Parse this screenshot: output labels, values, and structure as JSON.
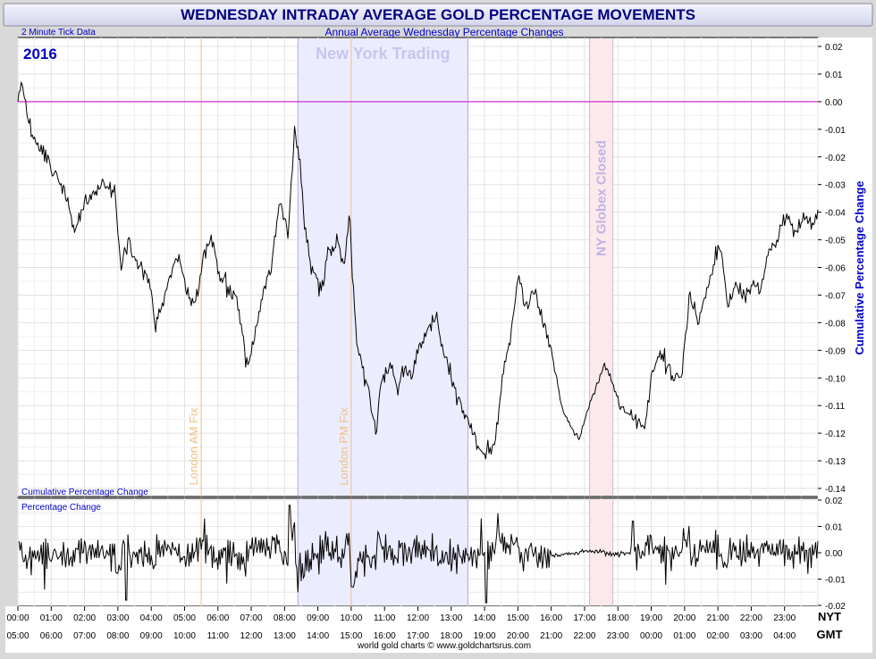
{
  "chart_data": {
    "type": "line",
    "title": "WEDNESDAY INTRADAY AVERAGE GOLD PERCENTAGE MOVEMENTS",
    "subtitle": "Annual Average Wednesday Percentage Changes",
    "note": "2 Minute Tick Data",
    "year": "2016",
    "source": "world gold charts © www.goldchartsrus.com",
    "x_units": "hours from 00:00 NYT",
    "nyt_ticks": [
      "00:00",
      "01:00",
      "02:00",
      "03:00",
      "04:00",
      "05:00",
      "06:00",
      "07:00",
      "08:00",
      "09:00",
      "10:00",
      "11:00",
      "12:00",
      "13:00",
      "14:00",
      "15:00",
      "16:00",
      "17:00",
      "18:00",
      "19:00",
      "20:00",
      "21:00",
      "22:00",
      "23:00"
    ],
    "gmt_ticks": [
      "05:00",
      "06:00",
      "07:00",
      "08:00",
      "09:00",
      "10:00",
      "11:00",
      "12:00",
      "13:00",
      "14:00",
      "15:00",
      "16:00",
      "17:00",
      "18:00",
      "19:00",
      "20:00",
      "21:00",
      "22:00",
      "23:00",
      "00:00",
      "01:00",
      "02:00",
      "03:00",
      "04:00"
    ],
    "nyt_axis_label": "NYT",
    "gmt_axis_label": "GMT",
    "upper_panel": {
      "name": "Cumulative Percentage Change",
      "ylabel": "Cumulative Percentage Change",
      "ylim": [
        -0.14,
        0.02
      ],
      "yticks": [
        "0.02",
        "0.01",
        "0.00",
        "-0.01",
        "-0.02",
        "-0.03",
        "-0.04",
        "-0.05",
        "-0.06",
        "-0.07",
        "-0.08",
        "-0.09",
        "-0.10",
        "-0.11",
        "-0.12",
        "-0.13",
        "-0.14"
      ],
      "zero_line_color": "#cc33cc",
      "line_color": "#000000",
      "keypoints": [
        [
          0.0,
          0.0
        ],
        [
          0.1,
          0.008
        ],
        [
          0.35,
          -0.01
        ],
        [
          0.6,
          -0.015
        ],
        [
          0.9,
          -0.022
        ],
        [
          1.2,
          -0.028
        ],
        [
          1.5,
          -0.036
        ],
        [
          1.7,
          -0.048
        ],
        [
          2.0,
          -0.035
        ],
        [
          2.3,
          -0.032
        ],
        [
          2.6,
          -0.03
        ],
        [
          2.9,
          -0.032
        ],
        [
          3.1,
          -0.06
        ],
        [
          3.3,
          -0.05
        ],
        [
          3.6,
          -0.06
        ],
        [
          3.9,
          -0.063
        ],
        [
          4.15,
          -0.082
        ],
        [
          4.4,
          -0.07
        ],
        [
          4.7,
          -0.058
        ],
        [
          4.85,
          -0.055
        ],
        [
          5.0,
          -0.065
        ],
        [
          5.25,
          -0.075
        ],
        [
          5.4,
          -0.068
        ],
        [
          5.6,
          -0.055
        ],
        [
          5.8,
          -0.048
        ],
        [
          6.0,
          -0.06
        ],
        [
          6.2,
          -0.065
        ],
        [
          6.5,
          -0.07
        ],
        [
          6.7,
          -0.08
        ],
        [
          6.85,
          -0.097
        ],
        [
          7.1,
          -0.085
        ],
        [
          7.3,
          -0.072
        ],
        [
          7.6,
          -0.06
        ],
        [
          7.85,
          -0.035
        ],
        [
          8.1,
          -0.048
        ],
        [
          8.3,
          -0.012
        ],
        [
          8.45,
          -0.02
        ],
        [
          8.6,
          -0.045
        ],
        [
          8.8,
          -0.06
        ],
        [
          9.1,
          -0.07
        ],
        [
          9.3,
          -0.055
        ],
        [
          9.6,
          -0.05
        ],
        [
          9.8,
          -0.06
        ],
        [
          9.95,
          -0.04
        ],
        [
          10.05,
          -0.065
        ],
        [
          10.15,
          -0.085
        ],
        [
          10.35,
          -0.098
        ],
        [
          10.6,
          -0.11
        ],
        [
          10.75,
          -0.12
        ],
        [
          10.9,
          -0.1
        ],
        [
          11.2,
          -0.095
        ],
        [
          11.4,
          -0.105
        ],
        [
          11.55,
          -0.097
        ],
        [
          11.8,
          -0.1
        ],
        [
          12.0,
          -0.09
        ],
        [
          12.3,
          -0.082
        ],
        [
          12.55,
          -0.078
        ],
        [
          12.75,
          -0.09
        ],
        [
          13.0,
          -0.1
        ],
        [
          13.25,
          -0.11
        ],
        [
          13.5,
          -0.115
        ],
        [
          13.8,
          -0.125
        ],
        [
          14.0,
          -0.128
        ],
        [
          14.3,
          -0.125
        ],
        [
          14.55,
          -0.1
        ],
        [
          14.8,
          -0.085
        ],
        [
          15.0,
          -0.06
        ],
        [
          15.2,
          -0.075
        ],
        [
          15.5,
          -0.068
        ],
        [
          15.75,
          -0.08
        ],
        [
          16.0,
          -0.09
        ],
        [
          16.3,
          -0.11
        ],
        [
          16.6,
          -0.118
        ],
        [
          16.85,
          -0.122
        ],
        [
          17.0,
          -0.115
        ],
        [
          17.3,
          -0.105
        ],
        [
          17.6,
          -0.095
        ],
        [
          17.85,
          -0.102
        ],
        [
          18.05,
          -0.11
        ],
        [
          18.3,
          -0.113
        ],
        [
          18.55,
          -0.115
        ],
        [
          18.8,
          -0.118
        ],
        [
          19.0,
          -0.1
        ],
        [
          19.25,
          -0.09
        ],
        [
          19.45,
          -0.095
        ],
        [
          19.7,
          -0.1
        ],
        [
          19.9,
          -0.098
        ],
        [
          20.15,
          -0.07
        ],
        [
          20.4,
          -0.08
        ],
        [
          20.6,
          -0.072
        ],
        [
          20.85,
          -0.06
        ],
        [
          21.05,
          -0.05
        ],
        [
          21.3,
          -0.075
        ],
        [
          21.55,
          -0.065
        ],
        [
          21.8,
          -0.07
        ],
        [
          22.05,
          -0.065
        ],
        [
          22.25,
          -0.07
        ],
        [
          22.5,
          -0.055
        ],
        [
          22.75,
          -0.05
        ],
        [
          23.05,
          -0.04
        ],
        [
          23.3,
          -0.048
        ],
        [
          23.55,
          -0.042
        ],
        [
          23.8,
          -0.045
        ],
        [
          24.0,
          -0.04
        ]
      ]
    },
    "lower_panel": {
      "name": "Percentage Change",
      "ylim": [
        -0.02,
        0.02
      ],
      "yticks": [
        "0.02",
        "0.01",
        "0.00",
        "-0.01",
        "-0.02"
      ],
      "line_color": "#000000",
      "base_amplitude": 0.005,
      "spikes": [
        [
          0.8,
          -0.014
        ],
        [
          3.25,
          -0.018
        ],
        [
          5.6,
          0.013
        ],
        [
          8.15,
          0.018
        ],
        [
          8.4,
          -0.015
        ],
        [
          10.05,
          -0.013
        ],
        [
          13.9,
          0.013
        ],
        [
          14.05,
          -0.019
        ],
        [
          14.4,
          0.015
        ],
        [
          18.45,
          0.012
        ],
        [
          23.7,
          -0.008
        ]
      ],
      "quiet_window": [
        16.0,
        18.35
      ]
    },
    "shaded_regions": [
      {
        "label": "New York Trading",
        "start": 8.4,
        "end": 13.5,
        "color": "#ececff",
        "border": "#a9a9e6"
      },
      {
        "label": "NY Globex Closed",
        "start": 17.15,
        "end": 17.85,
        "color": "#fbe9ec",
        "border": "#cbb6de"
      }
    ],
    "vlines": [
      {
        "label": "London AM Fix",
        "x": 5.5,
        "color": "#f0c080"
      },
      {
        "label": "London PM Fix",
        "x": 10.0,
        "color": "#f0c080"
      }
    ]
  }
}
